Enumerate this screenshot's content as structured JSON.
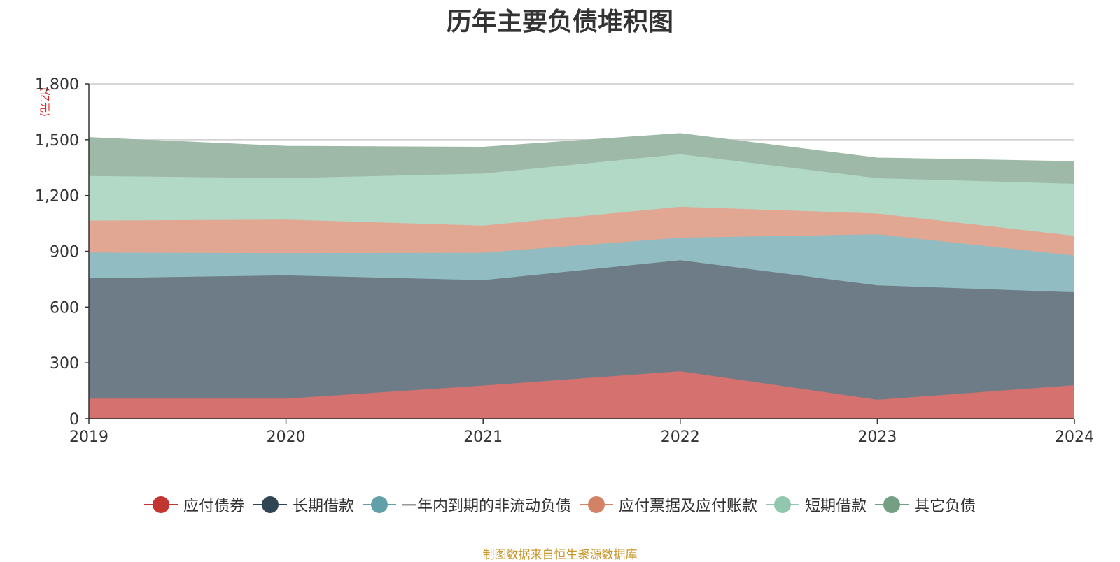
{
  "chart_data": {
    "type": "area",
    "stacked": true,
    "title": "历年主要负债堆积图",
    "unit_label": "(亿元)",
    "x": [
      "2019",
      "2020",
      "2021",
      "2022",
      "2023",
      "2024"
    ],
    "ylim": [
      0,
      1800
    ],
    "yticks": [
      0,
      300,
      600,
      900,
      1200,
      1500,
      1800
    ],
    "ytick_labels": [
      "0",
      "300",
      "600",
      "900",
      "1,200",
      "1,500",
      "1,800"
    ],
    "grid": true,
    "legend_position": "bottom-center",
    "series": [
      {
        "name": "应付债券",
        "values": [
          108,
          108,
          178,
          255,
          102,
          180
        ],
        "color": "#c23531",
        "fill": "#d5726f"
      },
      {
        "name": "长期借款",
        "values": [
          647,
          663,
          567,
          597,
          615,
          500
        ],
        "color": "#2f4554",
        "fill": "#6e7c87"
      },
      {
        "name": "一年内到期的非流动负债",
        "values": [
          138,
          119,
          147,
          121,
          274,
          197
        ],
        "color": "#61a0a8",
        "fill": "#90bcc2"
      },
      {
        "name": "应付票据及应付账款",
        "values": [
          172,
          180,
          146,
          166,
          112,
          106
        ],
        "color": "#d48265",
        "fill": "#e1a792"
      },
      {
        "name": "短期借款",
        "values": [
          240,
          223,
          280,
          283,
          190,
          280
        ],
        "color": "#91c7ae",
        "fill": "#b2d8c6"
      },
      {
        "name": "其它负债",
        "values": [
          205,
          170,
          140,
          110,
          107,
          118
        ],
        "color": "#749f83",
        "fill": "#9eb9a7"
      }
    ]
  },
  "source_text": "制图数据来自恒生聚源数据库"
}
